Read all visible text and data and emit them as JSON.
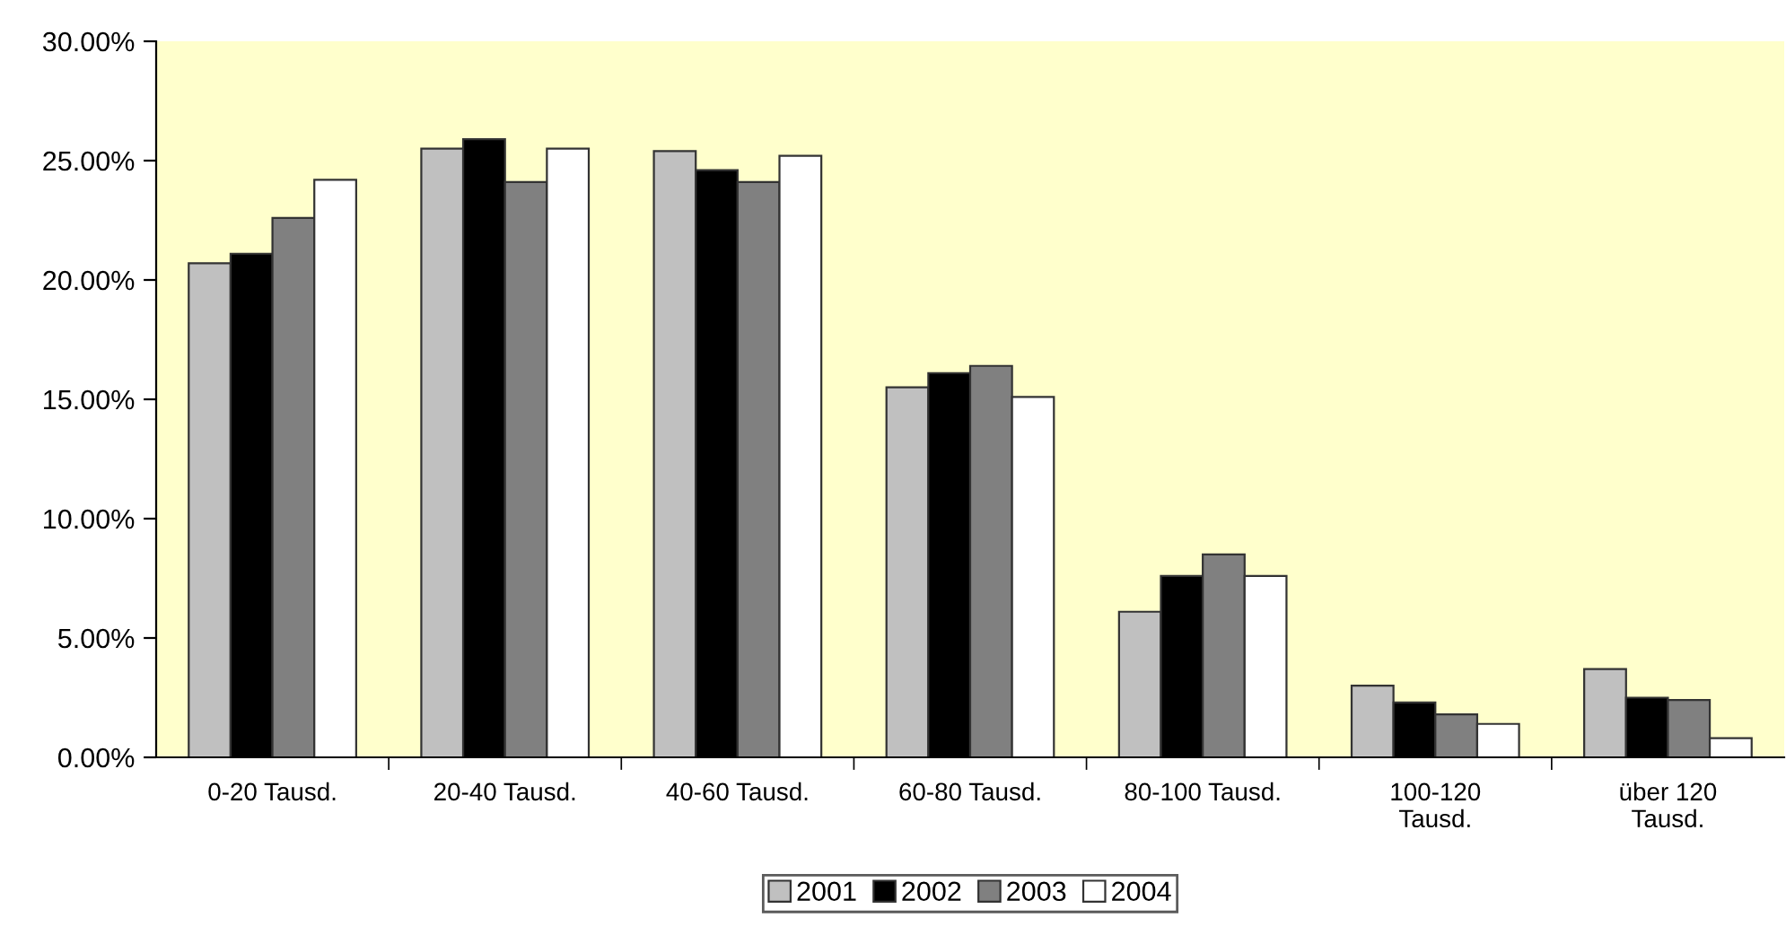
{
  "chart_data": {
    "type": "bar",
    "categories": [
      "0-20 Tausd.",
      "20-40 Tausd.",
      "40-60 Tausd.",
      "60-80 Tausd.",
      "80-100 Tausd.",
      "100-120\nTausd.",
      "über 120\nTausd."
    ],
    "series": [
      {
        "name": "2001",
        "color": "#c0c0c0",
        "values": [
          20.7,
          25.5,
          25.4,
          15.5,
          6.1,
          3.0,
          3.7
        ]
      },
      {
        "name": "2002",
        "color": "#000000",
        "values": [
          21.1,
          25.9,
          24.6,
          16.1,
          7.6,
          2.3,
          2.5
        ]
      },
      {
        "name": "2003",
        "color": "#808080",
        "values": [
          22.6,
          24.1,
          24.1,
          16.4,
          8.5,
          1.8,
          2.4
        ]
      },
      {
        "name": "2004",
        "color": "#ffffff",
        "values": [
          24.2,
          25.5,
          25.2,
          15.1,
          7.6,
          1.4,
          0.8
        ]
      }
    ],
    "ylim": [
      0,
      30
    ],
    "yticks": [
      {
        "value": 0,
        "label": "0.00%"
      },
      {
        "value": 5,
        "label": "5.00%"
      },
      {
        "value": 10,
        "label": "10.00%"
      },
      {
        "value": 15,
        "label": "15.00%"
      },
      {
        "value": 20,
        "label": "20.00%"
      },
      {
        "value": 25,
        "label": "25.00%"
      },
      {
        "value": 30,
        "label": "30.00%"
      }
    ],
    "grid": false,
    "legend": "bottom"
  }
}
